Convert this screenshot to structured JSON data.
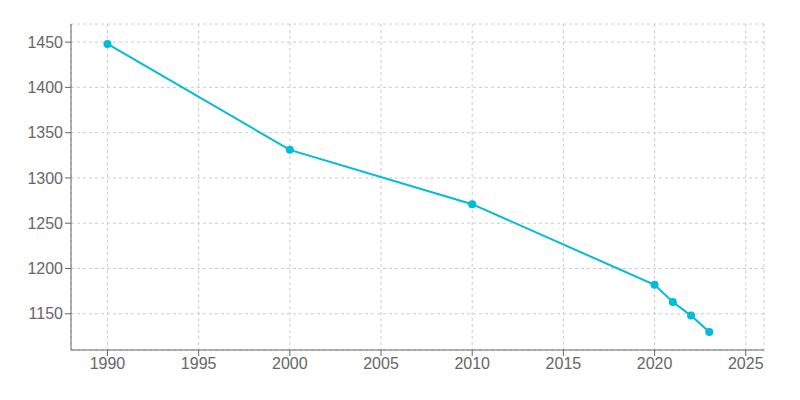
{
  "chart_data": {
    "type": "line",
    "x": [
      1990,
      2000,
      2010,
      2020,
      2021,
      2022,
      2023
    ],
    "values": [
      1448,
      1331,
      1271,
      1182,
      1163,
      1148,
      1130
    ],
    "color": "#00bcd4",
    "marker": "circle",
    "grid": true,
    "xlim": [
      1988,
      2026
    ],
    "ylim": [
      1110,
      1470
    ],
    "xticks": [
      1990,
      1995,
      2000,
      2005,
      2010,
      2015,
      2020,
      2025
    ],
    "yticks": [
      1150,
      1200,
      1250,
      1300,
      1350,
      1400,
      1450
    ]
  }
}
